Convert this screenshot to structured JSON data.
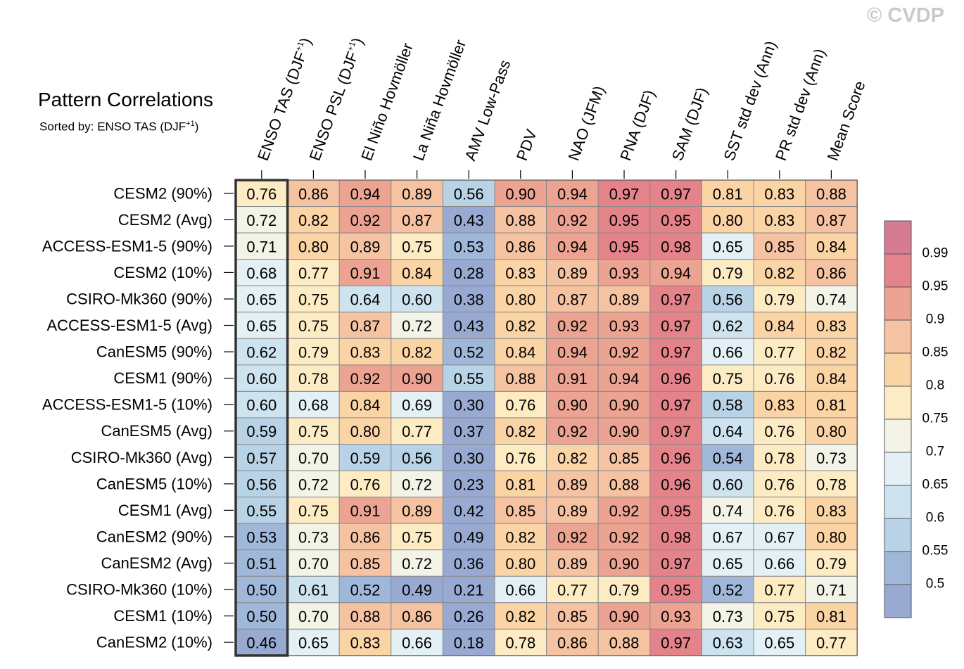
{
  "title": "Pattern Correlations",
  "subtitle": "Sorted by: ENSO TAS (DJF",
  "subtitle_sup": "+1",
  "subtitle_end": ")",
  "watermark": "© CVDP",
  "chart_data": {
    "type": "heatmap",
    "columns": [
      {
        "label": "ENSO TAS (DJF",
        "sup": "+1",
        "end": ")"
      },
      {
        "label": "ENSO PSL (DJF",
        "sup": "+1",
        "end": ")"
      },
      {
        "label": "El Niño Hovmöller"
      },
      {
        "label": "La Niña Hovmöller"
      },
      {
        "label": "AMV Low-Pass"
      },
      {
        "label": "PDV"
      },
      {
        "label": "NAO (JFM)"
      },
      {
        "label": "PNA (DJF)"
      },
      {
        "label": "SAM (DJF)"
      },
      {
        "label": "SST std dev (Ann)"
      },
      {
        "label": "PR std dev (Ann)"
      },
      {
        "label": "Mean Score"
      }
    ],
    "rows": [
      "CESM2 (90%)",
      "CESM2 (Avg)",
      "ACCESS-ESM1-5 (90%)",
      "CESM2 (10%)",
      "CSIRO-Mk360 (90%)",
      "ACCESS-ESM1-5 (Avg)",
      "CanESM5 (90%)",
      "CESM1 (90%)",
      "ACCESS-ESM1-5 (10%)",
      "CanESM5 (Avg)",
      "CSIRO-Mk360 (Avg)",
      "CanESM5 (10%)",
      "CESM1 (Avg)",
      "CanESM2 (90%)",
      "CanESM2 (Avg)",
      "CSIRO-Mk360 (10%)",
      "CESM1 (10%)",
      "CanESM2 (10%)"
    ],
    "values": [
      [
        "0.76",
        "0.86",
        "0.94",
        "0.89",
        "0.56",
        "0.90",
        "0.94",
        "0.97",
        "0.97",
        "0.81",
        "0.83",
        "0.88"
      ],
      [
        "0.72",
        "0.82",
        "0.92",
        "0.87",
        "0.43",
        "0.88",
        "0.92",
        "0.95",
        "0.95",
        "0.80",
        "0.83",
        "0.87"
      ],
      [
        "0.71",
        "0.80",
        "0.89",
        "0.75",
        "0.53",
        "0.86",
        "0.94",
        "0.95",
        "0.98",
        "0.65",
        "0.85",
        "0.84"
      ],
      [
        "0.68",
        "0.77",
        "0.91",
        "0.84",
        "0.28",
        "0.83",
        "0.89",
        "0.93",
        "0.94",
        "0.79",
        "0.82",
        "0.86"
      ],
      [
        "0.65",
        "0.75",
        "0.64",
        "0.60",
        "0.38",
        "0.80",
        "0.87",
        "0.89",
        "0.97",
        "0.56",
        "0.79",
        "0.74"
      ],
      [
        "0.65",
        "0.75",
        "0.87",
        "0.72",
        "0.43",
        "0.82",
        "0.92",
        "0.93",
        "0.97",
        "0.62",
        "0.84",
        "0.83"
      ],
      [
        "0.62",
        "0.79",
        "0.83",
        "0.82",
        "0.52",
        "0.84",
        "0.94",
        "0.92",
        "0.97",
        "0.66",
        "0.77",
        "0.82"
      ],
      [
        "0.60",
        "0.78",
        "0.92",
        "0.90",
        "0.55",
        "0.88",
        "0.91",
        "0.94",
        "0.96",
        "0.75",
        "0.76",
        "0.84"
      ],
      [
        "0.60",
        "0.68",
        "0.84",
        "0.69",
        "0.30",
        "0.76",
        "0.90",
        "0.90",
        "0.97",
        "0.58",
        "0.83",
        "0.81"
      ],
      [
        "0.59",
        "0.75",
        "0.80",
        "0.77",
        "0.37",
        "0.82",
        "0.92",
        "0.90",
        "0.97",
        "0.64",
        "0.76",
        "0.80"
      ],
      [
        "0.57",
        "0.70",
        "0.59",
        "0.56",
        "0.30",
        "0.76",
        "0.82",
        "0.85",
        "0.96",
        "0.54",
        "0.78",
        "0.73"
      ],
      [
        "0.56",
        "0.72",
        "0.76",
        "0.72",
        "0.23",
        "0.81",
        "0.89",
        "0.88",
        "0.96",
        "0.60",
        "0.76",
        "0.78"
      ],
      [
        "0.55",
        "0.75",
        "0.91",
        "0.89",
        "0.42",
        "0.85",
        "0.89",
        "0.92",
        "0.95",
        "0.74",
        "0.76",
        "0.83"
      ],
      [
        "0.53",
        "0.73",
        "0.86",
        "0.75",
        "0.49",
        "0.82",
        "0.92",
        "0.92",
        "0.98",
        "0.67",
        "0.67",
        "0.80"
      ],
      [
        "0.51",
        "0.70",
        "0.85",
        "0.72",
        "0.36",
        "0.80",
        "0.89",
        "0.90",
        "0.97",
        "0.65",
        "0.66",
        "0.79"
      ],
      [
        "0.50",
        "0.61",
        "0.52",
        "0.49",
        "0.21",
        "0.66",
        "0.77",
        "0.79",
        "0.95",
        "0.52",
        "0.77",
        "0.71"
      ],
      [
        "0.50",
        "0.70",
        "0.88",
        "0.86",
        "0.26",
        "0.82",
        "0.85",
        "0.90",
        "0.93",
        "0.73",
        "0.75",
        "0.81"
      ],
      [
        "0.46",
        "0.65",
        "0.83",
        "0.66",
        "0.18",
        "0.78",
        "0.86",
        "0.88",
        "0.97",
        "0.63",
        "0.65",
        "0.77"
      ]
    ],
    "sorted_column": 0,
    "colorbar": {
      "labels": [
        "0.99",
        "0.95",
        "0.9",
        "0.85",
        "0.8",
        "0.75",
        "0.7",
        "0.65",
        "0.6",
        "0.55",
        "0.5"
      ],
      "colors": [
        "#d57c92",
        "#e5838a",
        "#eca392",
        "#f5c2a2",
        "#fbd4a6",
        "#fdebc4",
        "#f3f3e8",
        "#e3f1f6",
        "#cde3ef",
        "#b8d3e6",
        "#9fb8d9",
        "#99aad2"
      ]
    }
  }
}
